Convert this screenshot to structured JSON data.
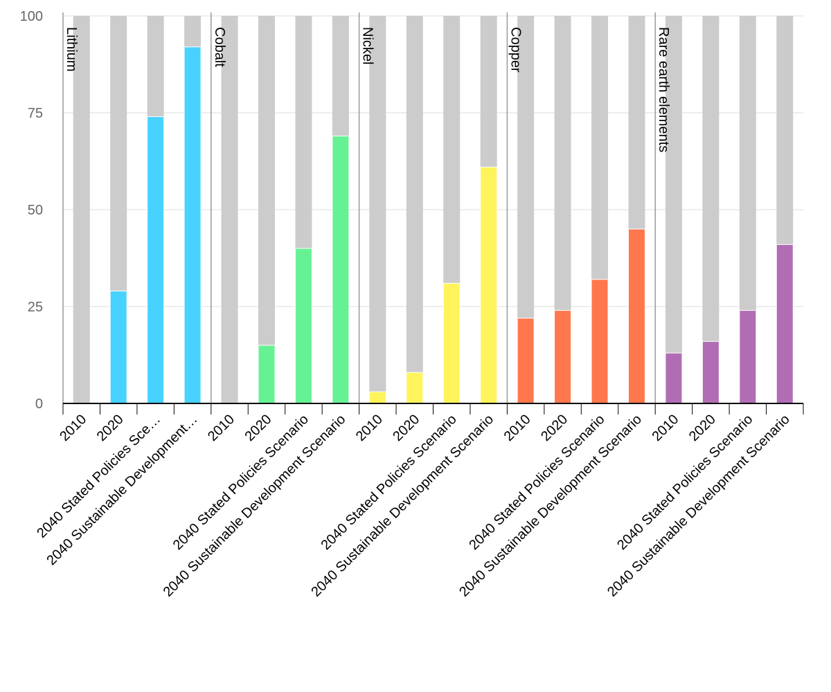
{
  "chart_data": {
    "type": "bar",
    "stacked_to": 100,
    "ylim": [
      0,
      100
    ],
    "yticks": [
      0,
      25,
      50,
      75,
      100
    ],
    "grid": true,
    "remainder_color": "#cccccc",
    "groups": [
      {
        "name": "Lithium",
        "color": "#47d2ff",
        "categories": [
          "2010",
          "2020",
          "2040 Stated Policies Sce…",
          "2040 Sustainable Development…"
        ],
        "values": [
          0,
          29,
          74,
          92
        ]
      },
      {
        "name": "Cobalt",
        "color": "#66f294",
        "categories": [
          "2010",
          "2020",
          "2040 Stated Policies Scenario",
          "2040 Sustainable Development Scenario"
        ],
        "values": [
          0,
          15,
          40,
          69
        ]
      },
      {
        "name": "Nickel",
        "color": "#fff45b",
        "categories": [
          "2010",
          "2020",
          "2040 Stated Policies Scenario",
          "2040 Sustainable Development Scenario"
        ],
        "values": [
          3,
          8,
          31,
          61
        ]
      },
      {
        "name": "Copper",
        "color": "#ff774d",
        "categories": [
          "2010",
          "2020",
          "2040 Stated Policies Scenario",
          "2040 Sustainable Development Scenario"
        ],
        "values": [
          22,
          24,
          32,
          45
        ]
      },
      {
        "name": "Rare earth elements",
        "color": "#b06db4",
        "categories": [
          "2010",
          "2020",
          "2040 Stated Policies Scenario",
          "2040 Sustainable Development Scenario"
        ],
        "values": [
          13,
          16,
          24,
          41
        ]
      }
    ]
  }
}
